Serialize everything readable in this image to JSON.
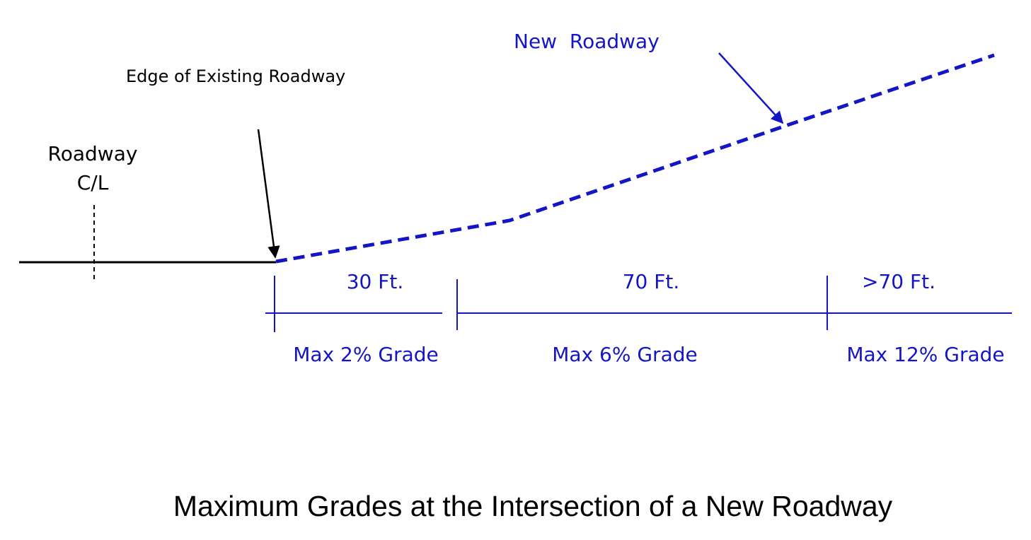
{
  "header": {
    "title": "Maximum Grades at the Intersection of a New Roadway"
  },
  "labels": {
    "new_roadway": "New  Roadway",
    "edge": "Edge of Existing Roadway",
    "centerline": [
      "Roadway",
      "C/L"
    ]
  },
  "segments": [
    {
      "length": "30 Ft.",
      "grade": "Max 2% Grade"
    },
    {
      "length": "70 Ft.",
      "grade": "Max 6% Grade"
    },
    {
      "length": ">70 Ft.",
      "grade": "Max 12% Grade"
    }
  ]
}
